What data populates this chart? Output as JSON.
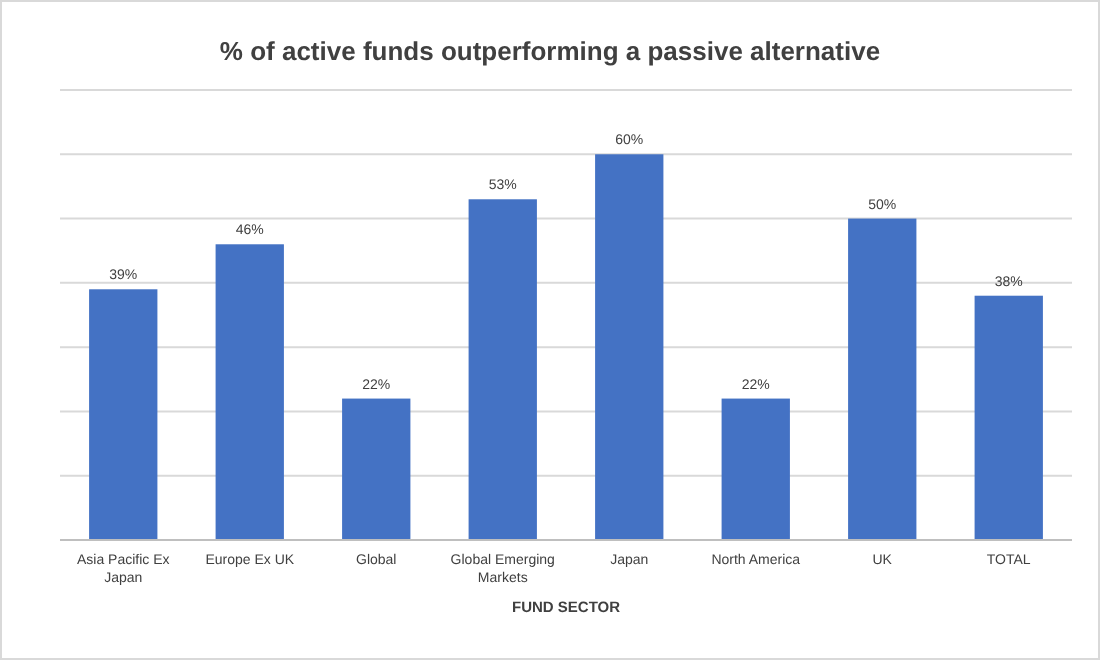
{
  "chart_data": {
    "type": "bar",
    "title": "% of active funds outperforming a passive alternative",
    "xlabel": "FUND SECTOR",
    "categories": [
      "Asia Pacific Ex Japan",
      "Europe Ex UK",
      "Global",
      "Global Emerging Markets",
      "Japan",
      "North America",
      "UK",
      "TOTAL"
    ],
    "values": [
      39,
      46,
      22,
      53,
      60,
      22,
      50,
      38
    ],
    "value_labels": [
      "39%",
      "46%",
      "22%",
      "53%",
      "60%",
      "22%",
      "50%",
      "38%"
    ],
    "color": "#4472c4",
    "ylim": [
      0,
      70
    ],
    "yticks": [
      {
        "value": 0,
        "label": null
      },
      {
        "value": 10,
        "label": null
      },
      {
        "value": 20,
        "label": null
      },
      {
        "value": 30,
        "label": null
      },
      {
        "value": 40,
        "label": null
      },
      {
        "value": 50,
        "label": null
      },
      {
        "value": 60,
        "label": null
      },
      {
        "value": 70,
        "label": null
      }
    ],
    "grid": "y",
    "tick_labels": "x"
  }
}
